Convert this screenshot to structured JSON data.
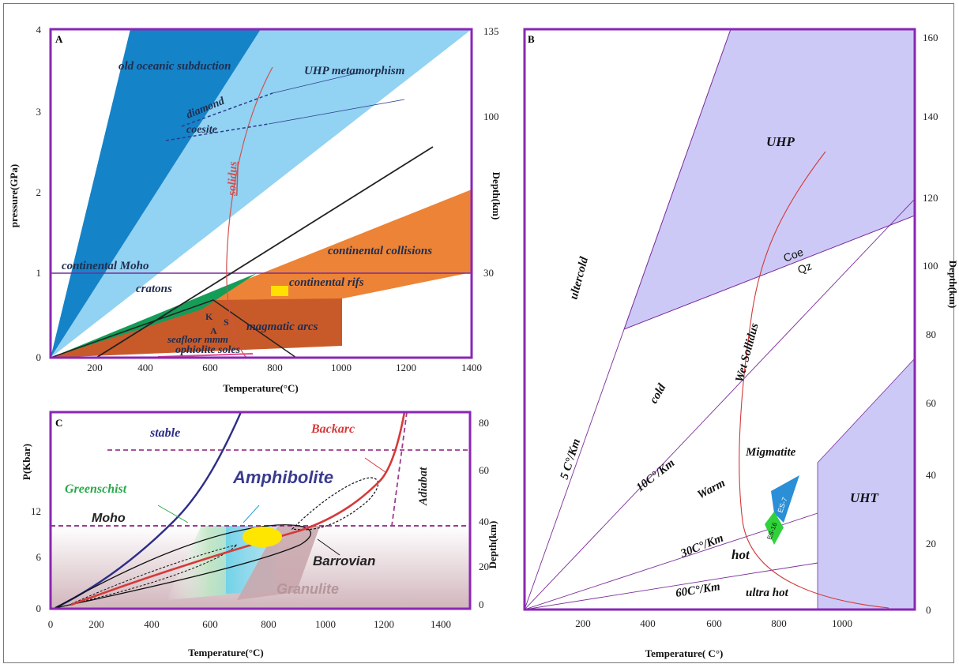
{
  "chart_data": [
    {
      "panel": "A",
      "type": "area",
      "xlabel": "Temperature(°C)",
      "ylabel": "pressure(GPa)",
      "y2label": "Depth(km)",
      "xlim": [
        100,
        1400
      ],
      "ylim": [
        0,
        4
      ],
      "x_ticks": [
        "200",
        "400",
        "600",
        "800",
        "1000",
        "1200",
        "1400"
      ],
      "y_ticks": [
        "0",
        "1",
        "2",
        "3",
        "4"
      ],
      "y2_ticks": [
        "30",
        "100",
        "135"
      ],
      "regions": [
        {
          "name": "old oceanic subduction",
          "color": "#1583c8"
        },
        {
          "name": "UHP metamorphism",
          "color": "#92d2f2"
        },
        {
          "name": "cratons",
          "color": "#159c57"
        },
        {
          "name": "continental collisions",
          "color": "#ed8336"
        },
        {
          "name": "magmatic arcs",
          "color": "#c85a2a"
        }
      ],
      "labels": {
        "old_subduction": "old oceanic subduction",
        "uhp": "UHP metamorphism",
        "diamond": "diamond",
        "coesite": "coesite",
        "solidus": "solidus",
        "moho": "continental Moho",
        "cratons": "cratons",
        "collisions": "continental collisions",
        "rifts": "continental rifs",
        "arcs": "magmatic arcs",
        "seafloor": "seafloor mmm",
        "ophiolite": "ophiolite soles",
        "k": "K",
        "a": "A",
        "s": "S"
      }
    },
    {
      "panel": "B",
      "type": "area",
      "xlabel": "Temperature( C°)",
      "ylabel": "Depth(km)",
      "xlim": [
        0,
        1200
      ],
      "ylim": [
        0,
        160
      ],
      "x_ticks": [
        "200",
        "400",
        "600",
        "800",
        "1000"
      ],
      "y_ticks": [
        "0",
        "20",
        "40",
        "60",
        "80",
        "100",
        "120",
        "140",
        "160"
      ],
      "geotherms": [
        "5 C°/Km",
        "10C°/Km",
        "30C°/Km",
        "60C°/Km"
      ],
      "labels": {
        "uhp": "UHP",
        "uht": "UHT",
        "coe": "Coe",
        "qz": "Qz",
        "ultercold": "ultercold",
        "cold": "cold",
        "warm": "Warm",
        "hot": "hot",
        "ultra_hot": "ultra hot",
        "wet_solidus": "Wet Sollidus",
        "migmatite": "Migmatite",
        "es7": "ES-7",
        "es16": "ES-16"
      },
      "colors": {
        "uhp": "#ccc9f7",
        "uht": "#ccc9f7",
        "es7": "#2a8fd6",
        "es16": "#2fd23a"
      }
    },
    {
      "panel": "C",
      "type": "area",
      "xlabel": "Temperature(°C)",
      "ylabel": "P(Kbar)",
      "y2label": "Depth(km)",
      "xlim": [
        0,
        1500
      ],
      "ylim": [
        0,
        22
      ],
      "x_ticks": [
        "0",
        "200",
        "400",
        "600",
        "800",
        "1000",
        "1200",
        "1400"
      ],
      "y_ticks": [
        "0",
        "6",
        "12"
      ],
      "y2_ticks": [
        "0",
        "20",
        "40",
        "60",
        "80"
      ],
      "labels": {
        "stable": "stable",
        "backarc": "Backarc",
        "greenschist": "Greenschist",
        "amphibolite": "Amphibolite",
        "moho": "Moho",
        "adiabat": "Adiabat",
        "barrovian": "Barrovian",
        "granulite": "Granulite"
      },
      "colors": {
        "greenschist": "#2aa84a",
        "amphibolite": "#3b3b8f",
        "backarc": "#d53a3a",
        "granulite": "#b5969c"
      }
    }
  ]
}
